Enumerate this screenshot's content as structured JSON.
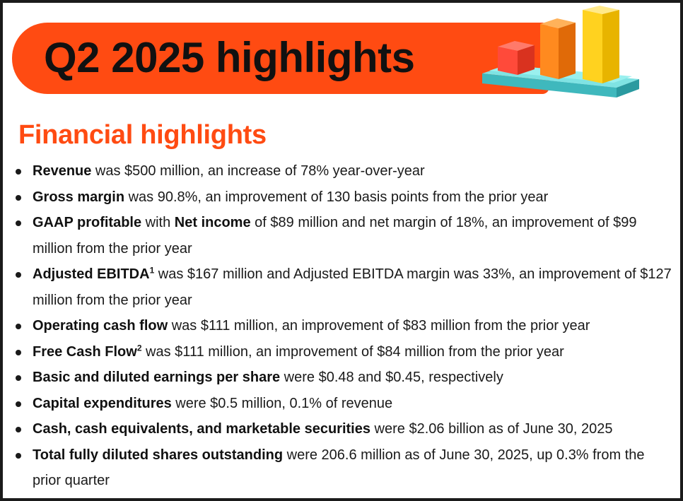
{
  "banner": {
    "title": "Q2 2025 highlights",
    "icon": "bar-chart-3d-icon",
    "colors": {
      "banner": "#ff4b12",
      "bar_red": "#ff4a3a",
      "bar_orange": "#ff8a1f",
      "bar_yellow": "#ffd21f",
      "base": "#56d0d4"
    }
  },
  "section": {
    "title": "Financial highlights",
    "accent": "#ff4b12"
  },
  "bullets": [
    {
      "bold": "Revenue",
      "text": " was $500 million, an increase of 78% year-over-year"
    },
    {
      "bold": "Gross margin",
      "text": " was 90.8%, an improvement of 130 basis points from the prior year"
    },
    {
      "bold": "GAAP profitable",
      "text": " with ",
      "bold2": "Net income",
      "text2": " of $89 million and net margin of 18%, an improvement of $99 million from the prior year"
    },
    {
      "bold": "Adjusted EBITDA",
      "sup": "1",
      "text": " was $167 million and Adjusted EBITDA margin was 33%, an improvement of $127 million from the prior year"
    },
    {
      "bold": "Operating cash flow",
      "text": " was $111 million, an improvement of $83 million from the prior year"
    },
    {
      "bold": "Free Cash Flow",
      "sup": "2",
      "text": " was $111 million, an improvement of $84 million from the prior year"
    },
    {
      "bold": "Basic and diluted earnings per share",
      "text": " were $0.48 and $0.45, respectively"
    },
    {
      "bold": "Capital expenditures",
      "text": " were $0.5 million, 0.1% of revenue"
    },
    {
      "bold": "Cash, cash equivalents, and marketable securities",
      "text": " were $2.06 billion as of June 30, 2025"
    },
    {
      "bold": "Total fully diluted shares outstanding",
      "text": " were 206.6 million as of June 30, 2025, up 0.3% from the prior quarter"
    }
  ]
}
